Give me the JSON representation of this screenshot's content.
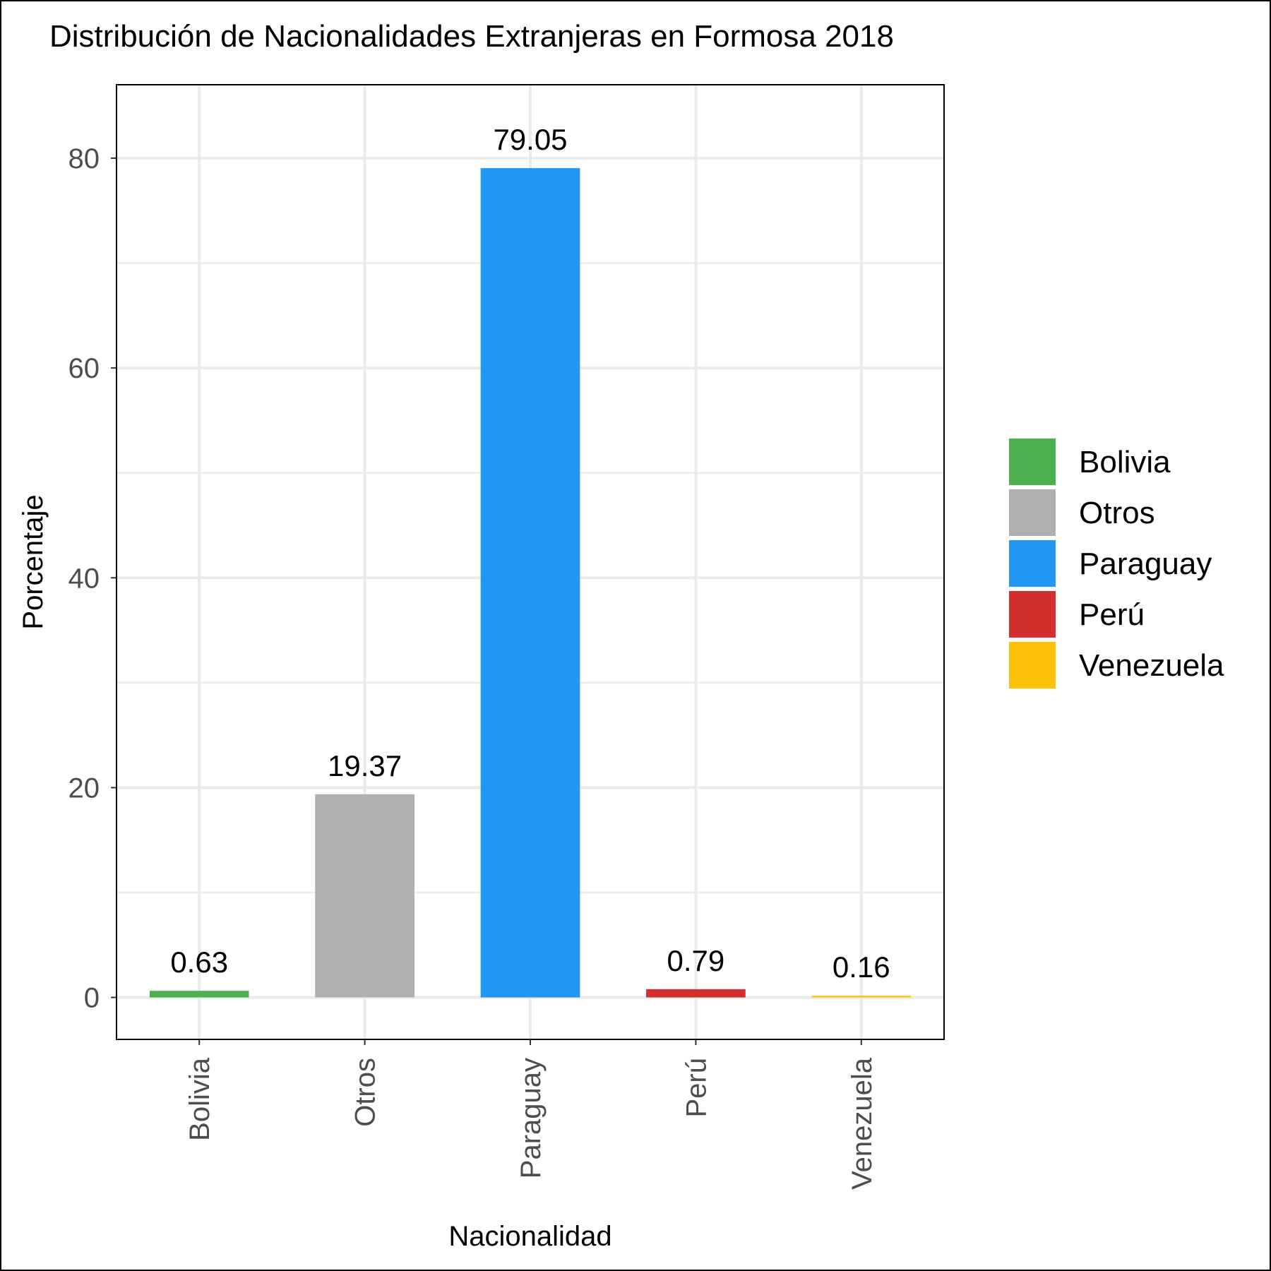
{
  "chart_data": {
    "type": "bar",
    "title": "Distribución de Nacionalidades Extranjeras en Formosa 2018",
    "xlabel": "Nacionalidad",
    "ylabel": "Porcentaje",
    "categories": [
      "Bolivia",
      "Otros",
      "Paraguay",
      "Perú",
      "Venezuela"
    ],
    "values": [
      0.63,
      19.37,
      79.05,
      0.79,
      0.16
    ],
    "value_labels": [
      "0.63",
      "19.37",
      "79.05",
      "0.79",
      "0.16"
    ],
    "colors": [
      "#4caf50",
      "#b0b0b0",
      "#2196f3",
      "#d32f2f",
      "#ffc107"
    ],
    "ylim": [
      -4,
      87
    ],
    "yticks": [
      0,
      20,
      40,
      60,
      80
    ],
    "ytick_labels": [
      "0",
      "20",
      "40",
      "60",
      "80"
    ],
    "grid": true,
    "legend": {
      "placement": "right",
      "entries": [
        "Bolivia",
        "Otros",
        "Paraguay",
        "Perú",
        "Venezuela"
      ]
    }
  }
}
